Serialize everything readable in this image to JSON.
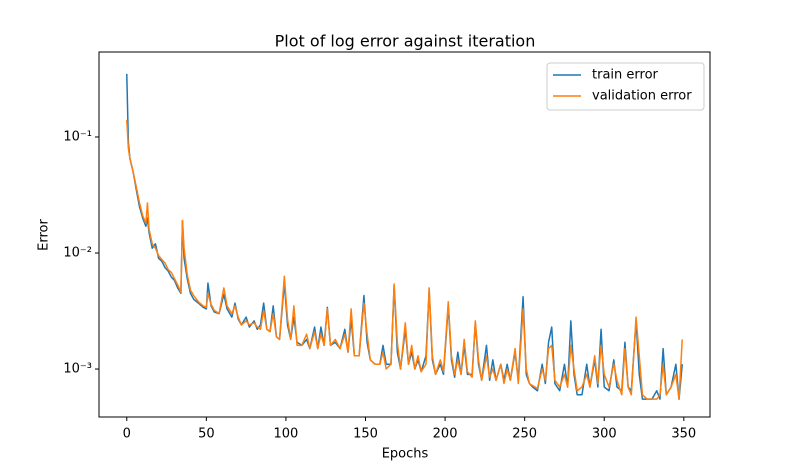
{
  "chart_data": {
    "type": "line",
    "title": "Plot of log error against iteration",
    "x_label": "Epochs",
    "y_label": "Error",
    "y_scale": "log",
    "legend": "upper right",
    "xlim": [
      -17.45,
      366.45
    ],
    "xticks": [
      0,
      50,
      100,
      150,
      200,
      250,
      300,
      350
    ],
    "ylim": [
      0.000386,
      0.54
    ],
    "yticks": [
      {
        "value": 0.001,
        "label": "10⁻³"
      },
      {
        "value": 0.01,
        "label": "10⁻²"
      },
      {
        "value": 0.1,
        "label": "10⁻¹"
      }
    ],
    "x": [
      0,
      1,
      2,
      4,
      6,
      8,
      10,
      12,
      13,
      14,
      16,
      18,
      20,
      22,
      24,
      26,
      28,
      30,
      32,
      34,
      35,
      36,
      38,
      40,
      42,
      45,
      48,
      50,
      51,
      53,
      55,
      58,
      61,
      63,
      66,
      68,
      70,
      72,
      75,
      77,
      80,
      82,
      84,
      86,
      88,
      90,
      92,
      94,
      96,
      99,
      101,
      103,
      105,
      107,
      110,
      113,
      115,
      118,
      120,
      122,
      124,
      126,
      128,
      131,
      134,
      137,
      139,
      141,
      143,
      146,
      149,
      151,
      153,
      156,
      159,
      161,
      163,
      166,
      168,
      170,
      172,
      175,
      177,
      179,
      181,
      183,
      185,
      188,
      190,
      192,
      194,
      197,
      199,
      202,
      204,
      206,
      208,
      210,
      212,
      214,
      217,
      219,
      221,
      223,
      226,
      228,
      230,
      232,
      235,
      237,
      239,
      241,
      244,
      246,
      249,
      251,
      253,
      255,
      258,
      261,
      263,
      265,
      267,
      269,
      272,
      275,
      277,
      279,
      281,
      283,
      286,
      289,
      291,
      294,
      296,
      298,
      300,
      303,
      306,
      308,
      311,
      313,
      315,
      317,
      320,
      322,
      324,
      327,
      330,
      333,
      335,
      337,
      339,
      342,
      345,
      347,
      349
    ],
    "series": [
      {
        "name": "train error",
        "color": "#1f77b4",
        "values": [
          0.35,
          0.09,
          0.065,
          0.05,
          0.035,
          0.025,
          0.02,
          0.017,
          0.02,
          0.015,
          0.011,
          0.012,
          0.009,
          0.0085,
          0.0075,
          0.007,
          0.0062,
          0.0058,
          0.005,
          0.0045,
          0.019,
          0.009,
          0.006,
          0.0045,
          0.004,
          0.0037,
          0.0034,
          0.0033,
          0.0055,
          0.0035,
          0.0031,
          0.003,
          0.0044,
          0.0033,
          0.0028,
          0.0037,
          0.0027,
          0.0024,
          0.0028,
          0.0023,
          0.0026,
          0.0022,
          0.0024,
          0.0037,
          0.0022,
          0.0021,
          0.0035,
          0.0019,
          0.0018,
          0.0055,
          0.0024,
          0.0018,
          0.0028,
          0.0017,
          0.0016,
          0.0018,
          0.0015,
          0.0023,
          0.0015,
          0.0023,
          0.0016,
          0.0034,
          0.0016,
          0.0017,
          0.0015,
          0.0022,
          0.0014,
          0.0027,
          0.0013,
          0.0013,
          0.0043,
          0.0017,
          0.0012,
          0.0011,
          0.0011,
          0.0016,
          0.0011,
          0.0011,
          0.0052,
          0.0014,
          0.001,
          0.0022,
          0.0011,
          0.0014,
          0.001,
          0.0012,
          0.00095,
          0.0013,
          0.0048,
          0.0012,
          0.0009,
          0.0011,
          0.0009,
          0.0035,
          0.0012,
          0.00085,
          0.0014,
          0.0009,
          0.0016,
          0.0009,
          0.0009,
          0.0025,
          0.0011,
          0.0008,
          0.0016,
          0.0008,
          0.0012,
          0.0008,
          0.0011,
          0.0008,
          0.0011,
          0.0008,
          0.0014,
          0.0008,
          0.0042,
          0.0009,
          0.00075,
          0.0007,
          0.00065,
          0.0011,
          0.00075,
          0.0017,
          0.0023,
          0.00075,
          0.00065,
          0.0011,
          0.0007,
          0.0026,
          0.0009,
          0.0006,
          0.0006,
          0.0011,
          0.0007,
          0.0012,
          0.0007,
          0.0022,
          0.0007,
          0.00065,
          0.0012,
          0.0007,
          0.00065,
          0.0017,
          0.0007,
          0.00065,
          0.0026,
          0.0009,
          0.00055,
          0.00055,
          0.00055,
          0.00065,
          0.00055,
          0.0015,
          0.0006,
          0.0007,
          0.0011,
          0.00055,
          0.0011
        ]
      },
      {
        "name": "validation error",
        "color": "#ff7f0e",
        "values": [
          0.14,
          0.08,
          0.065,
          0.05,
          0.037,
          0.027,
          0.021,
          0.018,
          0.027,
          0.016,
          0.012,
          0.011,
          0.0095,
          0.0088,
          0.0082,
          0.0072,
          0.0068,
          0.006,
          0.0053,
          0.0046,
          0.019,
          0.011,
          0.0065,
          0.0048,
          0.0043,
          0.0038,
          0.0035,
          0.0034,
          0.0045,
          0.0036,
          0.0032,
          0.003,
          0.005,
          0.0035,
          0.003,
          0.0035,
          0.0028,
          0.0024,
          0.0026,
          0.0024,
          0.0025,
          0.0023,
          0.0022,
          0.0032,
          0.0022,
          0.0021,
          0.003,
          0.0019,
          0.0018,
          0.0063,
          0.0027,
          0.0018,
          0.0035,
          0.0016,
          0.0016,
          0.002,
          0.0015,
          0.0021,
          0.0015,
          0.002,
          0.0016,
          0.0033,
          0.0016,
          0.0018,
          0.0015,
          0.002,
          0.0014,
          0.0033,
          0.0013,
          0.0013,
          0.0037,
          0.002,
          0.0012,
          0.0011,
          0.0011,
          0.0014,
          0.001,
          0.0011,
          0.0054,
          0.0017,
          0.001,
          0.0025,
          0.0011,
          0.0016,
          0.001,
          0.0013,
          0.00095,
          0.0011,
          0.005,
          0.0013,
          0.0009,
          0.0012,
          0.00095,
          0.0038,
          0.0013,
          0.0009,
          0.0012,
          0.0009,
          0.0018,
          0.00095,
          0.00085,
          0.0026,
          0.0012,
          0.0008,
          0.0013,
          0.00085,
          0.001,
          0.0008,
          0.0011,
          0.00075,
          0.001,
          0.0008,
          0.0015,
          0.00075,
          0.0033,
          0.001,
          0.00075,
          0.00072,
          0.00068,
          0.001,
          0.0008,
          0.0015,
          0.0016,
          0.0008,
          0.0007,
          0.0009,
          0.0007,
          0.0016,
          0.001,
          0.00065,
          0.0007,
          0.0009,
          0.0007,
          0.0013,
          0.00075,
          0.0016,
          0.0009,
          0.0007,
          0.0011,
          0.0008,
          0.0006,
          0.0015,
          0.0007,
          0.0006,
          0.0028,
          0.0013,
          0.0006,
          0.00055,
          0.00055,
          0.00055,
          0.0006,
          0.0011,
          0.0006,
          0.0007,
          0.0009,
          0.00055,
          0.0018
        ]
      }
    ]
  }
}
